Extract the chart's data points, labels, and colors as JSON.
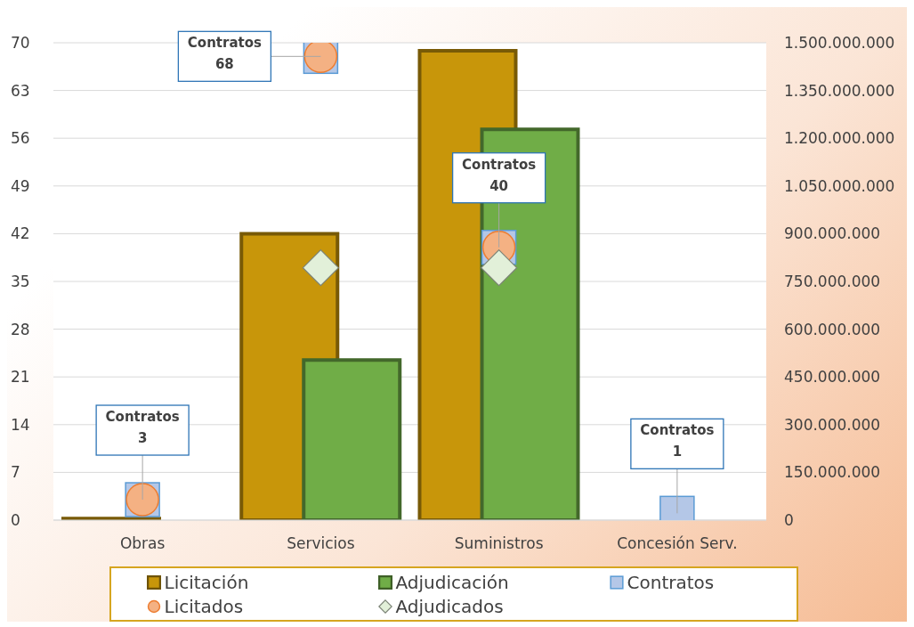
{
  "chart_data": {
    "type": "bar",
    "categories": [
      "Obras",
      "Servicios",
      "Suministros",
      "Concesión Serv."
    ],
    "series": [
      {
        "name": "Licitación",
        "axis": "y2",
        "color": "#c8960a",
        "values": [
          5000000,
          900000000,
          1475000000,
          null
        ]
      },
      {
        "name": "Adjudicación",
        "axis": "y2",
        "color": "#70ad47",
        "values": [
          null,
          503000000,
          1228000000,
          null
        ]
      },
      {
        "name": "Contratos",
        "type": "scatter",
        "marker": "square",
        "color": "#b4c7e7",
        "values": [
          3,
          68,
          40,
          1
        ],
        "value_labels": [
          "Contratos\n3",
          "Contratos\n68",
          "Contratos\n40",
          "Contratos\n1"
        ]
      },
      {
        "name": "Licitados",
        "type": "scatter",
        "marker": "circle",
        "color": "#f4b183",
        "values": [
          3,
          68,
          40,
          null
        ]
      },
      {
        "name": "Adjudicados",
        "type": "scatter",
        "marker": "diamond",
        "color": "#e2f0d9",
        "values": [
          null,
          37,
          37,
          null
        ]
      }
    ],
    "ylim": [
      0,
      70
    ],
    "yticks": [
      0,
      7,
      14,
      21,
      28,
      35,
      42,
      49,
      56,
      63,
      70
    ],
    "y2lim": [
      0,
      1500000000
    ],
    "y2ticks": [
      {
        "value": 0,
        "label": "0"
      },
      {
        "value": 150000000,
        "label": "150.000.000"
      },
      {
        "value": 300000000,
        "label": "300.000.000"
      },
      {
        "value": 450000000,
        "label": "450.000.000"
      },
      {
        "value": 600000000,
        "label": "600.000.000"
      },
      {
        "value": 750000000,
        "label": "750.000.000"
      },
      {
        "value": 900000000,
        "label": "900.000.000"
      },
      {
        "value": 1050000000,
        "label": "1.050.000.000"
      },
      {
        "value": 1200000000,
        "label": "1.200.000.000"
      },
      {
        "value": 1350000000,
        "label": "1.350.000.000"
      },
      {
        "value": 1500000000,
        "label": "1.500.000.000"
      }
    ],
    "grid": "y",
    "legend": "bottom"
  }
}
